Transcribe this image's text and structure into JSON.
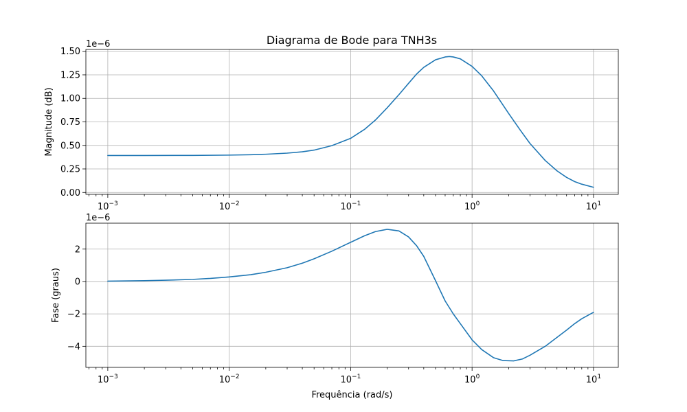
{
  "figure": {
    "title": "Diagrama de Bode para TNH3s",
    "line_color": "#1f77b4"
  },
  "chart_data": [
    {
      "type": "line",
      "title": "Diagrama de Bode para TNH3s",
      "xlabel": "",
      "ylabel": "Magnitude (dB)",
      "xscale": "log",
      "xlim": [
        0.00066,
        16
      ],
      "ylim": [
        -0.02,
        1.52
      ],
      "y_offset_text": "1e−6",
      "y_ticks": [
        0.0,
        0.25,
        0.5,
        0.75,
        1.0,
        1.25,
        1.5
      ],
      "y_tick_labels": [
        "0.00",
        "0.25",
        "0.50",
        "0.75",
        "1.00",
        "1.25",
        "1.50"
      ],
      "x_ticks": [
        0.001,
        0.01,
        0.1,
        1,
        10
      ],
      "x_tick_labels": [
        {
          "base": "10",
          "exp": "−3"
        },
        {
          "base": "10",
          "exp": "−2"
        },
        {
          "base": "10",
          "exp": "−1"
        },
        {
          "base": "10",
          "exp": "0"
        },
        {
          "base": "10",
          "exp": "1"
        }
      ],
      "grid": true,
      "series": [
        {
          "x": [
            0.001,
            0.002,
            0.005,
            0.01,
            0.015,
            0.02,
            0.03,
            0.04,
            0.05,
            0.07,
            0.1,
            0.13,
            0.16,
            0.2,
            0.25,
            0.3,
            0.35,
            0.4,
            0.5,
            0.6,
            0.65,
            0.7,
            0.8,
            1.0,
            1.2,
            1.5,
            2.0,
            2.5,
            3.0,
            4.0,
            5.0,
            6.0,
            7.0,
            8.0,
            10.0
          ],
          "y": [
            0.393,
            0.393,
            0.394,
            0.397,
            0.401,
            0.406,
            0.418,
            0.432,
            0.45,
            0.497,
            0.575,
            0.67,
            0.77,
            0.9,
            1.04,
            1.16,
            1.26,
            1.33,
            1.41,
            1.44,
            1.445,
            1.44,
            1.42,
            1.34,
            1.24,
            1.08,
            0.84,
            0.66,
            0.52,
            0.34,
            0.23,
            0.16,
            0.115,
            0.088,
            0.055
          ]
        }
      ]
    },
    {
      "type": "line",
      "title": "",
      "xlabel": "Frequência (rad/s)",
      "ylabel": "Fase (graus)",
      "xscale": "log",
      "xlim": [
        0.00066,
        16
      ],
      "ylim": [
        -5.3,
        3.6
      ],
      "y_offset_text": "1e−6",
      "y_ticks": [
        -4,
        -2,
        0,
        2
      ],
      "y_tick_labels": [
        "−4",
        "−2",
        "0",
        "2"
      ],
      "x_ticks": [
        0.001,
        0.01,
        0.1,
        1,
        10
      ],
      "x_tick_labels": [
        {
          "base": "10",
          "exp": "−3"
        },
        {
          "base": "10",
          "exp": "−2"
        },
        {
          "base": "10",
          "exp": "−1"
        },
        {
          "base": "10",
          "exp": "0"
        },
        {
          "base": "10",
          "exp": "1"
        }
      ],
      "grid": true,
      "series": [
        {
          "x": [
            0.001,
            0.002,
            0.003,
            0.005,
            0.007,
            0.01,
            0.015,
            0.02,
            0.03,
            0.04,
            0.05,
            0.07,
            0.1,
            0.13,
            0.16,
            0.2,
            0.25,
            0.3,
            0.35,
            0.4,
            0.5,
            0.6,
            0.7,
            0.8,
            1.0,
            1.2,
            1.5,
            1.8,
            2.2,
            2.6,
            3.0,
            4.0,
            5.0,
            6.0,
            7.0,
            8.0,
            10.0
          ],
          "y": [
            0.02,
            0.05,
            0.08,
            0.13,
            0.19,
            0.28,
            0.42,
            0.57,
            0.85,
            1.13,
            1.4,
            1.87,
            2.42,
            2.82,
            3.08,
            3.22,
            3.12,
            2.75,
            2.2,
            1.55,
            0.05,
            -1.2,
            -2.0,
            -2.6,
            -3.6,
            -4.2,
            -4.7,
            -4.88,
            -4.9,
            -4.78,
            -4.55,
            -4.0,
            -3.45,
            -3.0,
            -2.6,
            -2.3,
            -1.9
          ]
        }
      ]
    }
  ]
}
